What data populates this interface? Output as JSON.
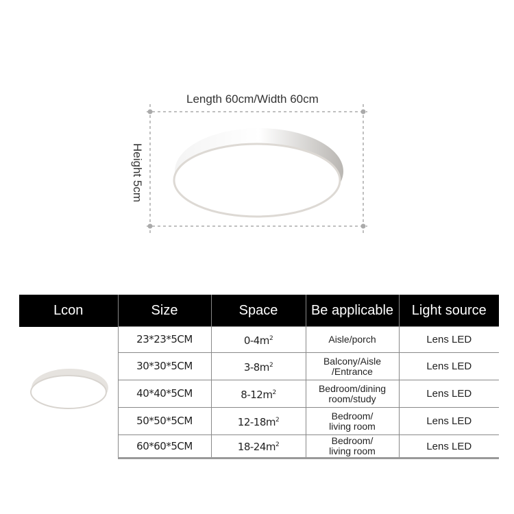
{
  "dimensions": {
    "length_width": "Length 60cm/Width 60cm",
    "height": "Height 5cm"
  },
  "table": {
    "headers": [
      "Lcon",
      "Size",
      "Space",
      "Be applicable",
      "Light source"
    ],
    "rows": [
      {
        "size": "23*23*5CM",
        "space": "0-4m",
        "space_unit_sup": "2",
        "applicable": [
          "Aisle/porch"
        ],
        "light": "Lens LED"
      },
      {
        "size": "30*30*5CM",
        "space": "3-8m",
        "space_unit_sup": "2",
        "applicable": [
          "Balcony/Aisle",
          "/Entrance"
        ],
        "light": "Lens LED"
      },
      {
        "size": "40*40*5CM",
        "space": "8-12m",
        "space_unit_sup": "2",
        "applicable": [
          "Bedroom/dining",
          "room/study"
        ],
        "light": "Lens LED"
      },
      {
        "size": "50*50*5CM",
        "space": "12-18m",
        "space_unit_sup": "2",
        "applicable": [
          "Bedroom/",
          "living room"
        ],
        "light": "Lens LED"
      },
      {
        "size": "60*60*5CM",
        "space": "18-24m",
        "space_unit_sup": "2",
        "applicable": [
          "Bedroom/",
          "living room"
        ],
        "light": "Lens LED"
      }
    ]
  },
  "colors": {
    "header_bg": "#000000",
    "header_text": "#ffffff",
    "dim_line": "#aaaaaa"
  }
}
